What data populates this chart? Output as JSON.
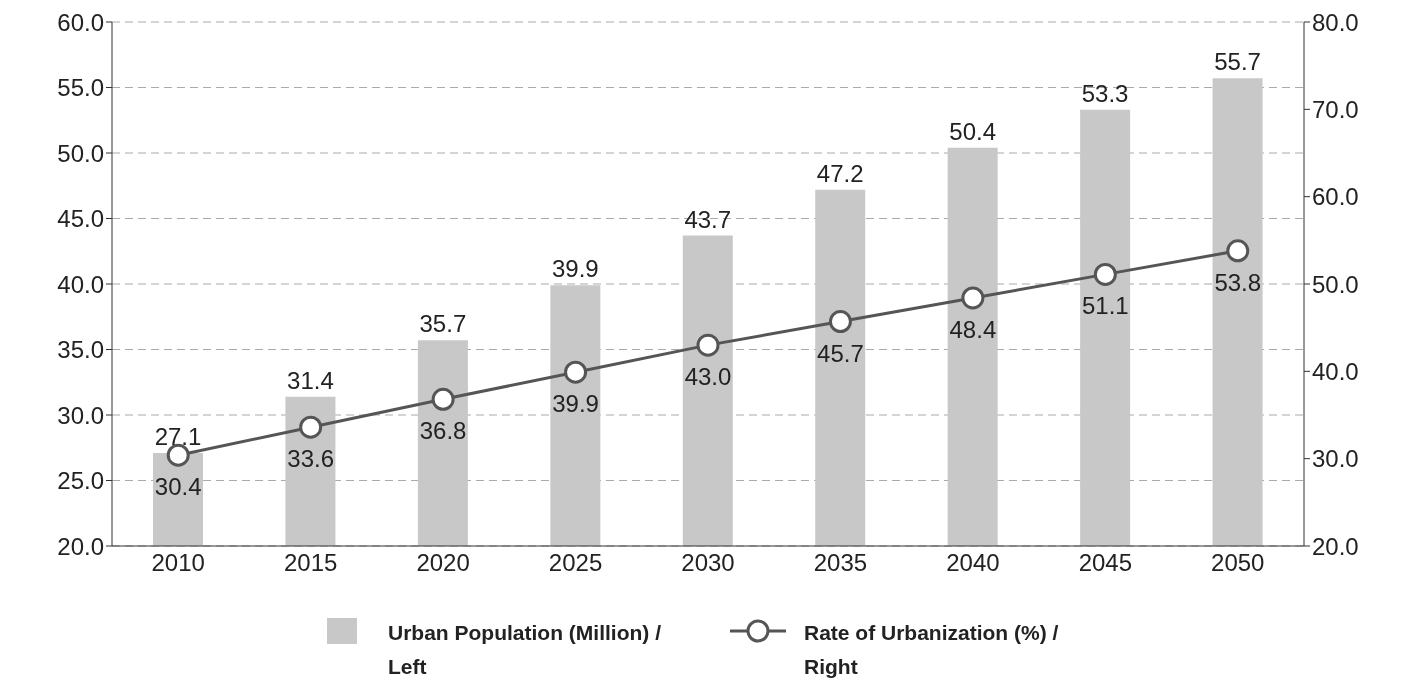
{
  "chart_data": {
    "type": "bar",
    "categories": [
      "2010",
      "2015",
      "2020",
      "2025",
      "2030",
      "2035",
      "2040",
      "2045",
      "2050"
    ],
    "series": [
      {
        "name": "Urban Population (Million) / Left",
        "color": "#c8c8c8",
        "values": [
          27.1,
          31.4,
          35.7,
          39.9,
          43.7,
          47.2,
          50.4,
          53.3,
          55.7
        ],
        "value_labels": [
          "27.1",
          "31.4",
          "35.7",
          "39.9",
          "43.7",
          "47.2",
          "50.4",
          "53.3",
          "55.7"
        ]
      },
      {
        "name": "Rate of Urbanization (%) / Right",
        "type": "line",
        "axis": "y2",
        "color": "#555555",
        "values": [
          30.4,
          33.6,
          36.8,
          39.9,
          43.0,
          45.7,
          48.4,
          51.1,
          53.8
        ],
        "value_labels": [
          "30.4",
          "33.6",
          "36.8",
          "39.9",
          "43.0",
          "45.7",
          "48.4",
          "51.1",
          "53.8"
        ]
      }
    ],
    "ylim": [
      20,
      60
    ],
    "yticks": [
      {
        "value": 20,
        "label": "20.0"
      },
      {
        "value": 25,
        "label": "25.0"
      },
      {
        "value": 30,
        "label": "30.0"
      },
      {
        "value": 35,
        "label": "35.0"
      },
      {
        "value": 40,
        "label": "40.0"
      },
      {
        "value": 45,
        "label": "45.0"
      },
      {
        "value": 50,
        "label": "50.0"
      },
      {
        "value": 55,
        "label": "55.0"
      },
      {
        "value": 60,
        "label": "60.0"
      }
    ],
    "y2lim": [
      20,
      80
    ],
    "y2ticks": [
      {
        "value": 20,
        "label": "20.0"
      },
      {
        "value": 30,
        "label": "30.0"
      },
      {
        "value": 40,
        "label": "40.0"
      },
      {
        "value": 50,
        "label": "50.0"
      },
      {
        "value": 60,
        "label": "60.0"
      },
      {
        "value": 70,
        "label": "70.0"
      },
      {
        "value": 80,
        "label": "80.0"
      }
    ],
    "grid": "y",
    "legend": "bottom",
    "marker": "circle",
    "line_style": "solid"
  }
}
